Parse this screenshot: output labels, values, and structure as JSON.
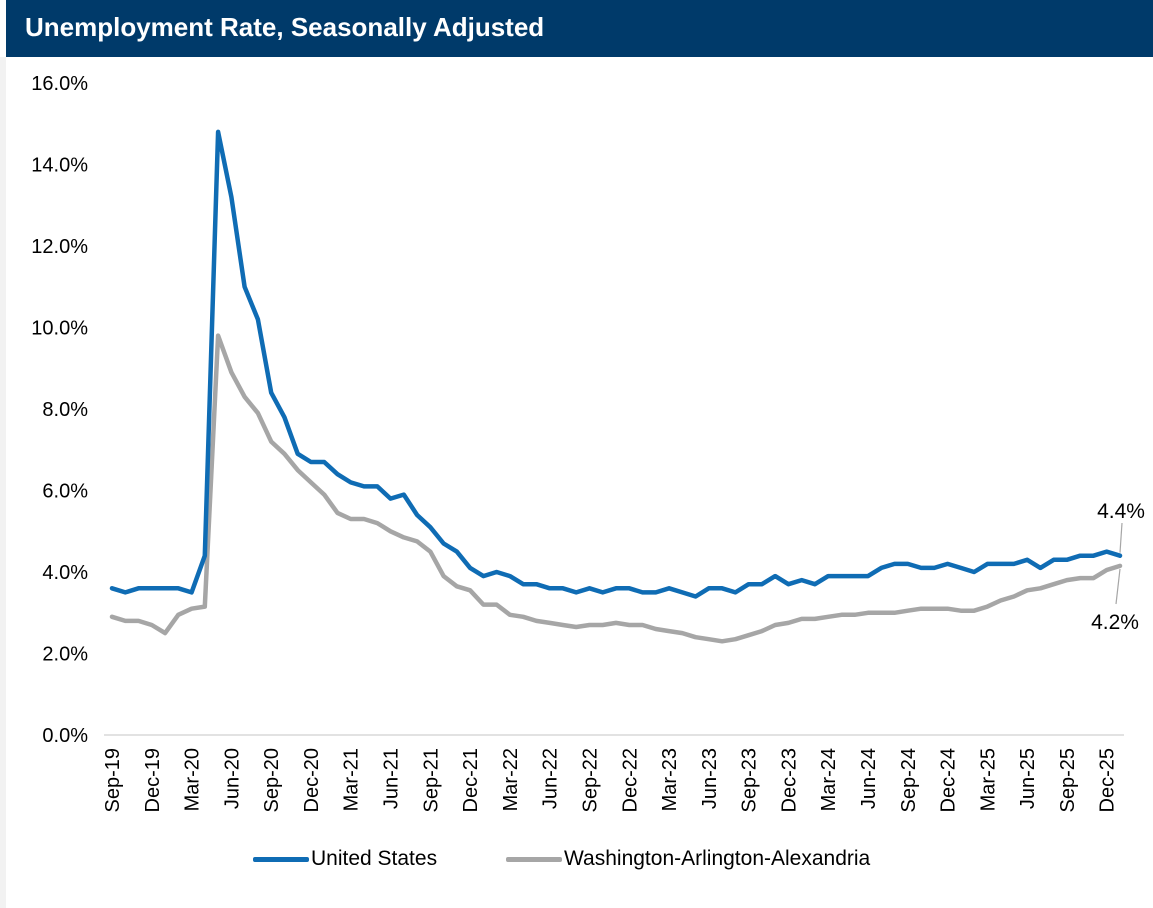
{
  "title": "Unemployment Rate, Seasonally Adjusted",
  "colors": {
    "header_bg": "#003a6a",
    "us": "#0f6cb4",
    "dc": "#a6a6a6"
  },
  "chart_data": {
    "type": "line",
    "title": "Unemployment Rate, Seasonally Adjusted",
    "xlabel": "",
    "ylabel": "",
    "ylim": [
      0,
      16
    ],
    "y_ticks": [
      0,
      2,
      4,
      6,
      8,
      10,
      12,
      14,
      16
    ],
    "y_tick_labels": [
      "0.0%",
      "2.0%",
      "4.0%",
      "6.0%",
      "8.0%",
      "10.0%",
      "12.0%",
      "14.0%",
      "16.0%"
    ],
    "x_start": "Sep-19",
    "x_end": "Dec-25",
    "x_tick_labels": [
      "Sep-19",
      "Dec-19",
      "Mar-20",
      "Jun-20",
      "Sep-20",
      "Dec-20",
      "Mar-21",
      "Jun-21",
      "Sep-21",
      "Dec-21",
      "Mar-22",
      "Jun-22",
      "Sep-22",
      "Dec-22",
      "Mar-23",
      "Jun-23",
      "Sep-23",
      "Dec-23",
      "Mar-24",
      "Jun-24",
      "Sep-24",
      "Dec-24",
      "Mar-25",
      "Jun-25",
      "Sep-25",
      "Dec-25"
    ],
    "grid": false,
    "legend_position": "bottom",
    "series": [
      {
        "name": "United States",
        "color": "#0f6cb4",
        "values": [
          3.6,
          3.5,
          3.6,
          3.6,
          3.6,
          3.6,
          3.5,
          4.4,
          14.8,
          13.2,
          11.0,
          10.2,
          8.4,
          7.8,
          6.9,
          6.7,
          6.7,
          6.4,
          6.2,
          6.1,
          6.1,
          5.8,
          5.9,
          5.4,
          5.1,
          4.7,
          4.5,
          4.1,
          3.9,
          4.0,
          3.9,
          3.7,
          3.7,
          3.6,
          3.6,
          3.5,
          3.6,
          3.5,
          3.6,
          3.6,
          3.5,
          3.5,
          3.6,
          3.5,
          3.4,
          3.6,
          3.6,
          3.5,
          3.7,
          3.7,
          3.9,
          3.7,
          3.8,
          3.7,
          3.9,
          3.9,
          3.9,
          3.9,
          4.1,
          4.2,
          4.2,
          4.1,
          4.1,
          4.2,
          4.1,
          4.0,
          4.2,
          4.2,
          4.2,
          4.3,
          4.1,
          4.3,
          4.3,
          4.4,
          4.4,
          4.5,
          4.4
        ],
        "end_label": "4.4%"
      },
      {
        "name": "Washington-Arlington-Alexandria",
        "color": "#a6a6a6",
        "values": [
          2.9,
          2.8,
          2.8,
          2.7,
          2.5,
          2.95,
          3.1,
          3.15,
          9.8,
          8.9,
          8.3,
          7.9,
          7.2,
          6.9,
          6.5,
          6.2,
          5.9,
          5.45,
          5.3,
          5.3,
          5.2,
          5.0,
          4.85,
          4.75,
          4.5,
          3.9,
          3.65,
          3.55,
          3.2,
          3.2,
          2.95,
          2.9,
          2.8,
          2.75,
          2.7,
          2.65,
          2.7,
          2.7,
          2.75,
          2.7,
          2.7,
          2.6,
          2.55,
          2.5,
          2.4,
          2.35,
          2.3,
          2.35,
          2.45,
          2.55,
          2.7,
          2.75,
          2.85,
          2.85,
          2.9,
          2.95,
          2.95,
          3.0,
          3.0,
          3.0,
          3.05,
          3.1,
          3.1,
          3.1,
          3.05,
          3.05,
          3.15,
          3.3,
          3.4,
          3.55,
          3.6,
          3.7,
          3.8,
          3.85,
          3.85,
          4.05,
          4.15
        ],
        "end_label": "4.2%"
      }
    ]
  }
}
